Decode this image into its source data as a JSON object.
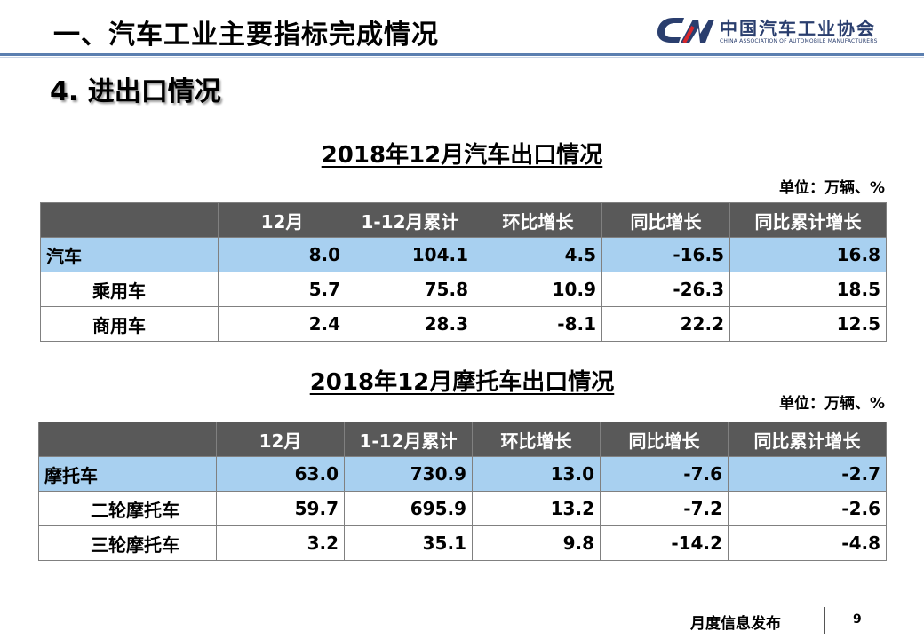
{
  "header": {
    "title": "一、汽车工业主要指标完成情况",
    "logo_cn": "中国汽车工业协会",
    "logo_en": "CHINA ASSOCIATION OF AUTOMOBILE MANUFACTURERS"
  },
  "section": {
    "title": "4. 进出口情况"
  },
  "table1": {
    "title": "2018年12月汽车出口情况",
    "unit": "单位：万辆、%",
    "columns": [
      "",
      "12月",
      "1-12月累计",
      "环比增长",
      "同比增长",
      "同比累计增长"
    ],
    "rows": [
      {
        "label": "汽车",
        "cells": [
          "8.0",
          "104.1",
          "4.5",
          "-16.5",
          "16.8"
        ]
      },
      {
        "label": "乘用车",
        "cells": [
          "5.7",
          "75.8",
          "10.9",
          "-26.3",
          "18.5"
        ]
      },
      {
        "label": "商用车",
        "cells": [
          "2.4",
          "28.3",
          "-8.1",
          "22.2",
          "12.5"
        ]
      }
    ]
  },
  "table2": {
    "title": "2018年12月摩托车出口情况",
    "unit": "单位：万辆、%",
    "columns": [
      "",
      "12月",
      "1-12月累计",
      "环比增长",
      "同比增长",
      "同比累计增长"
    ],
    "rows": [
      {
        "label": "摩托车",
        "cells": [
          "63.0",
          "730.9",
          "13.0",
          "-7.6",
          "-2.7"
        ]
      },
      {
        "label": "二轮摩托车",
        "cells": [
          "59.7",
          "695.9",
          "13.2",
          "-7.2",
          "-2.6"
        ]
      },
      {
        "label": "三轮摩托车",
        "cells": [
          "3.2",
          "35.1",
          "9.8",
          "-14.2",
          "-4.8"
        ]
      }
    ]
  },
  "footer": {
    "text": "月度信息发布",
    "page": "9"
  },
  "colors": {
    "header_bg": "#595959",
    "highlight_row": "#a8d0f0",
    "rule": "#5b7fb0",
    "brand": "#2a3e6e"
  }
}
